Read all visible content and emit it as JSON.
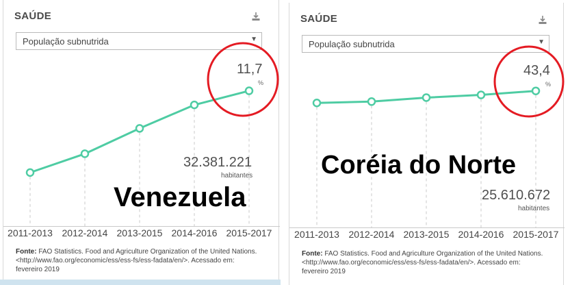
{
  "left": {
    "section_title": "SAÚDE",
    "select_value": "População subnutrida",
    "value": "11,7",
    "unit": "%",
    "population": "32.381.221",
    "population_label": "habitantes",
    "country_overlay": "Venezuela",
    "x_ticks": [
      "2011-2013",
      "2012-2014",
      "2013-2015",
      "2014-2016",
      "2015-2017"
    ],
    "source_label": "Fonte:",
    "source_text": "FAO Statistics. Food and Agriculture Organization of the United Nations. <http://www.fao.org/economic/ess/ess-fs/ess-fadata/en/>. Acessado em: fevereiro 2019",
    "chart_data": {
      "type": "line",
      "categories": [
        "2011-2013",
        "2012-2014",
        "2013-2015",
        "2014-2016",
        "2015-2017"
      ],
      "values": [
        3.0,
        5.0,
        7.7,
        10.2,
        11.7
      ],
      "ylim": [
        0,
        14
      ]
    }
  },
  "right": {
    "section_title": "SAÚDE",
    "select_value": "População subnutrida",
    "value": "43,4",
    "unit": "%",
    "population": "25.610.672",
    "population_label": "habitantes",
    "country_overlay": "Coréia do Norte",
    "x_ticks": [
      "2011-2013",
      "2012-2014",
      "2013-2015",
      "2014-2016",
      "2015-2017"
    ],
    "source_label": "Fonte:",
    "source_text": "FAO Statistics. Food and Agriculture Organization of the United Nations. <http://www.fao.org/economic/ess/ess-fs/ess-fadata/en/>. Acessado em: fevereiro 2019",
    "chart_data": {
      "type": "line",
      "categories": [
        "2011-2013",
        "2012-2014",
        "2013-2015",
        "2014-2016",
        "2015-2017"
      ],
      "values": [
        42.5,
        42.6,
        42.9,
        43.1,
        43.4
      ],
      "ylim": [
        30,
        50
      ]
    }
  },
  "colors": {
    "line": "#4ecca3",
    "highlight": "#e41b23",
    "grid": "#c9c9c9"
  },
  "icons": {
    "download": "download-icon",
    "caret": "caret-down-icon"
  }
}
